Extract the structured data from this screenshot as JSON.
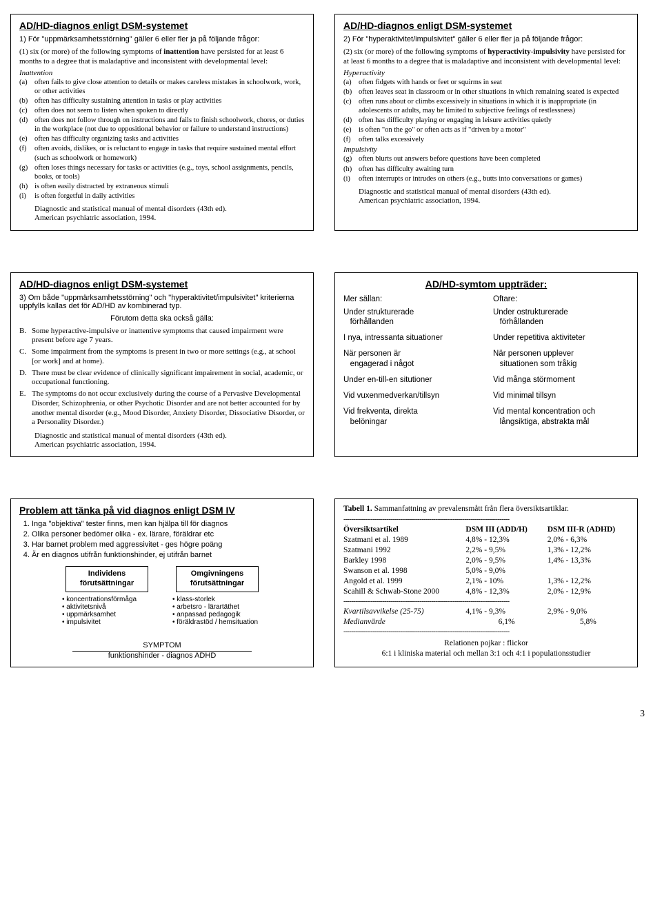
{
  "panel1": {
    "title": "AD/HD-diagnos enligt DSM-systemet",
    "subhead": "1) För \"uppmärksamhetsstörning\" gäller 6 eller fler ja på följande frågor:",
    "intro": "(1) six (or more) of the following symptoms of inattention have persisted for at least 6 months to a degree that is maladaptive and inconsistent with developmental level:",
    "section_label": "Inattention",
    "items": [
      {
        "l": "(a)",
        "t": "often fails to give close attention to details or makes careless mistakes in schoolwork, work, or other activities"
      },
      {
        "l": "(b)",
        "t": "often has difficulty sustaining attention in tasks or play activities"
      },
      {
        "l": "(c)",
        "t": "often does not seem to listen when spoken to directly"
      },
      {
        "l": "(d)",
        "t": "often does not follow through on instructions and fails to finish schoolwork, chores, or duties in the workplace (not due to oppositional behavior or failure to understand instructions)"
      },
      {
        "l": "(e)",
        "t": "often has difficulty organizing tasks and activities"
      },
      {
        "l": "(f)",
        "t": "often avoids, dislikes, or is reluctant to engage in tasks that require sustained mental effort (such as schoolwork or homework)"
      },
      {
        "l": "(g)",
        "t": "often loses things necessary for tasks or activities (e.g., toys, school assignments, pencils, books, or tools)"
      },
      {
        "l": "(h)",
        "t": "is often easily distracted by extraneous stimuli"
      },
      {
        "l": "(i)",
        "t": "is often forgetful in daily activities"
      }
    ],
    "cite1": "Diagnostic and statistical manual of mental disorders (43th ed).",
    "cite2": "American psychiatric association, 1994."
  },
  "panel2": {
    "title": "AD/HD-diagnos enligt DSM-systemet",
    "subhead": "2) För \"hyperaktivitet/impulsivitet\" gäller 6 eller fler ja på följande frågor:",
    "intro": "(2) six (or more) of the following symptoms of hyperactivity-impulsivity have persisted for at least 6 months to a degree that is maladaptive and inconsistent with developmental level:",
    "hyper_label": "Hyperactivity",
    "hyper_items": [
      {
        "l": "(a)",
        "t": "often fidgets with hands or feet or squirms in seat"
      },
      {
        "l": "(b)",
        "t": "often leaves seat in classroom or in other situations in which remaining seated is expected"
      },
      {
        "l": "(c)",
        "t": "often runs about or climbs excessively in situations in which it is inappropriate (in adolescents or adults, may be limited to subjective feelings of restlessness)"
      },
      {
        "l": "(d)",
        "t": "often has difficulty playing or engaging in leisure activities quietly"
      },
      {
        "l": "(e)",
        "t": "is often \"on the go\" or often acts as if \"driven by a motor\""
      },
      {
        "l": "(f)",
        "t": "often talks excessively"
      }
    ],
    "imp_label": "Impulsivity",
    "imp_items": [
      {
        "l": "(g)",
        "t": "often blurts out answers before questions have been completed"
      },
      {
        "l": "(h)",
        "t": "often has difficulty awaiting turn"
      },
      {
        "l": "(i)",
        "t": "often interrupts or intrudes on others (e.g., butts into conversations or games)"
      }
    ],
    "cite1": "Diagnostic and statistical manual of mental disorders (43th ed).",
    "cite2": "American psychiatric association, 1994."
  },
  "panel3": {
    "title": "AD/HD-diagnos enligt DSM-systemet",
    "subhead": "3) Om både \"uppmärksamhetsstörning\" och \"hyperaktivitet/impulsivitet\" kriterierna uppfylls kallas det för AD/HD av kombinerad typ.",
    "also": "Förutom detta ska också gälla:",
    "additional": [
      {
        "l": "B.",
        "t": "Some hyperactive-impulsive or inattentive symptoms that caused impairment were present before age 7 years."
      },
      {
        "l": "C.",
        "t": "Some impairment from the symptoms is present in two or more settings (e.g., at school [or work] and at home)."
      },
      {
        "l": "D.",
        "t": "There must be clear evidence of clinically significant impairement in social, academic, or occupational functioning."
      },
      {
        "l": "E.",
        "t": "The symptoms do not occur exclusively during the course of a Pervasive Developmental Disorder, Schizophrenia, or other Psychotic Disorder and are not better accounted for by another mental disorder (e.g., Mood Disorder, Anxiety Disorder, Dissociative Disorder, or a Personality Disorder.)"
      }
    ],
    "cite1": "Diagnostic and statistical manual of mental disorders (43th ed).",
    "cite2": "American psychiatric association, 1994."
  },
  "panel4": {
    "title": "AD/HD-symtom uppträder:",
    "left_head": "Mer sällan:",
    "right_head": "Oftare:",
    "rows": [
      {
        "l": "Under strukturerade\n   förhållanden",
        "r": "Under ostrukturerade\n   förhållanden"
      },
      {
        "l": "I nya, intressanta situationer",
        "r": "Under repetitiva aktiviteter"
      },
      {
        "l": "När personen är\n   engagerad i något",
        "r": "När personen upplever\n   situationen som tråkig"
      },
      {
        "l": "Under en-till-en situtioner",
        "r": "Vid många störmoment"
      },
      {
        "l": "Vid vuxenmedverkan/tillsyn",
        "r": "Vid minimal tillsyn"
      },
      {
        "l": "Vid frekventa, direkta\n   belöningar",
        "r": "Vid mental koncentration och\n   långsiktiga, abstrakta mål"
      }
    ]
  },
  "panel5": {
    "title": "Problem att tänka på vid diagnos enligt DSM IV",
    "points": [
      "Inga \"objektiva\" tester finns, men kan hjälpa till för diagnos",
      "Olika personer bedömer olika - ex. lärare, föräldrar etc",
      "Har barnet problem med aggressivitet - ges högre poäng",
      "Är en diagnos utifrån funktionshinder, ej utifrån barnet"
    ],
    "box_left_title": "Individens förutsättningar",
    "box_right_title": "Omgivningens förutsättningar",
    "bul_left": [
      "koncentrationsförmåga",
      "aktivitetsnivå",
      "uppmärksamhet",
      "impulsivitet"
    ],
    "bul_right": [
      "klass-storlek",
      "arbetsro - lärartäthet",
      "anpassad pedagogik",
      "föräldrastöd / hemsituation"
    ],
    "sym_label": "SYMPTOM",
    "sym_sub": "funktionshinder - diagnos ADHD"
  },
  "panel6": {
    "caption": "Tabell 1. Sammanfattning av prevalensmått från flera översiktsartiklar.",
    "h1": "Översiktsartikel",
    "h2": "DSM III (ADD/H)",
    "h3": "DSM III-R (ADHD)",
    "rows": [
      {
        "a": "Szatmani et al. 1989",
        "b": "4,8% - 12,3%",
        "c": "2,0% - 6,3%"
      },
      {
        "a": "Szatmani 1992",
        "b": "2,2% - 9,5%",
        "c": "1,3% - 12,2%"
      },
      {
        "a": "Barkley 1998",
        "b": "2,0% - 9,5%",
        "c": "1,4% - 13,3%"
      },
      {
        "a": "Swanson et al. 1998",
        "b": "5,0% - 9,0%",
        "c": ""
      },
      {
        "a": "Angold et al. 1999",
        "b": "2,1% - 10%",
        "c": "1,3% - 12,2%"
      },
      {
        "a": "Scahill & Schwab-Stone 2000",
        "b": "4,8% - 12,3%",
        "c": "2,0% - 12,9%"
      }
    ],
    "kvart_label": "Kvartilsavvikelse (25-75)",
    "kvart_b": "4,1% - 9,3%",
    "kvart_c": "2,9% - 9,0%",
    "median_label": "Medianvärde",
    "median_b": "6,1%",
    "median_c": "5,8%",
    "foot1": "Relationen pojkar : flickor",
    "foot2": "6:1 i kliniska material och mellan 3:1 och 4:1 i populationsstudier"
  },
  "pagenum": "3",
  "dashline": "-------------------------------------------------------------------------------------"
}
